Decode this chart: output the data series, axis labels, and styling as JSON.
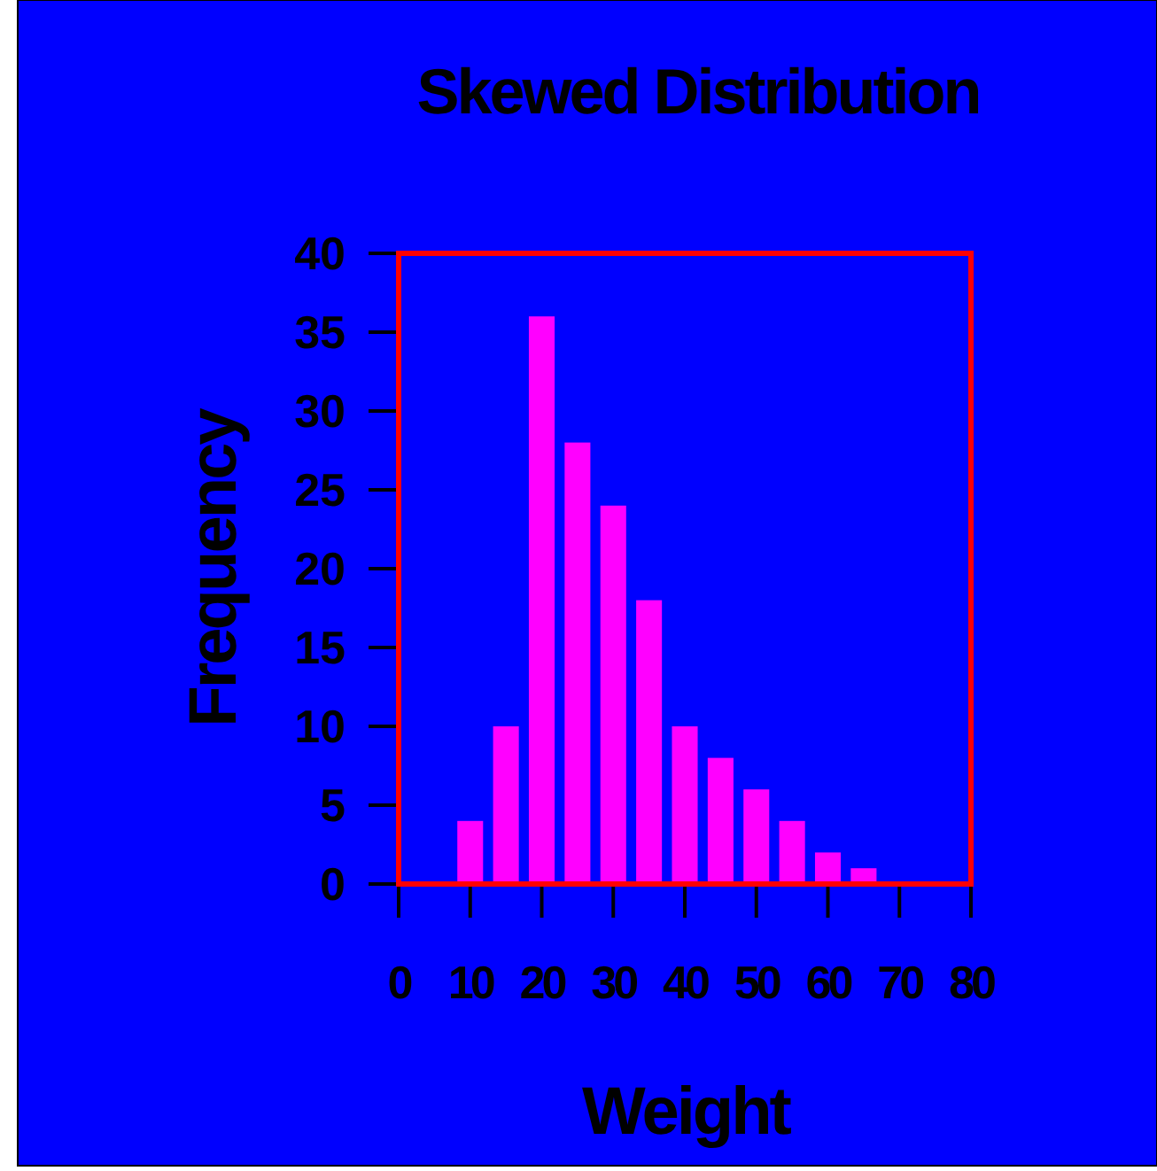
{
  "chart_data": {
    "type": "histogram",
    "title": "Skewed Distribution",
    "xlabel": "Weight",
    "ylabel": "Frequency",
    "bins": [
      7.5,
      12.5,
      17.5,
      22.5,
      27.5,
      32.5,
      37.5,
      42.5,
      47.5,
      52.5,
      57.5,
      62.5,
      67.5
    ],
    "values": [
      4,
      10,
      36,
      28,
      24,
      18,
      10,
      8,
      6,
      4,
      2,
      1
    ],
    "color": "#ff00ff",
    "xlim": [
      0,
      80
    ],
    "xticks": [
      0,
      10,
      20,
      30,
      40,
      50,
      60,
      70,
      80
    ],
    "ylim": [
      0,
      40
    ],
    "yticks": [
      0,
      5,
      10,
      15,
      20,
      25,
      30,
      35,
      40
    ],
    "grid": false
  }
}
